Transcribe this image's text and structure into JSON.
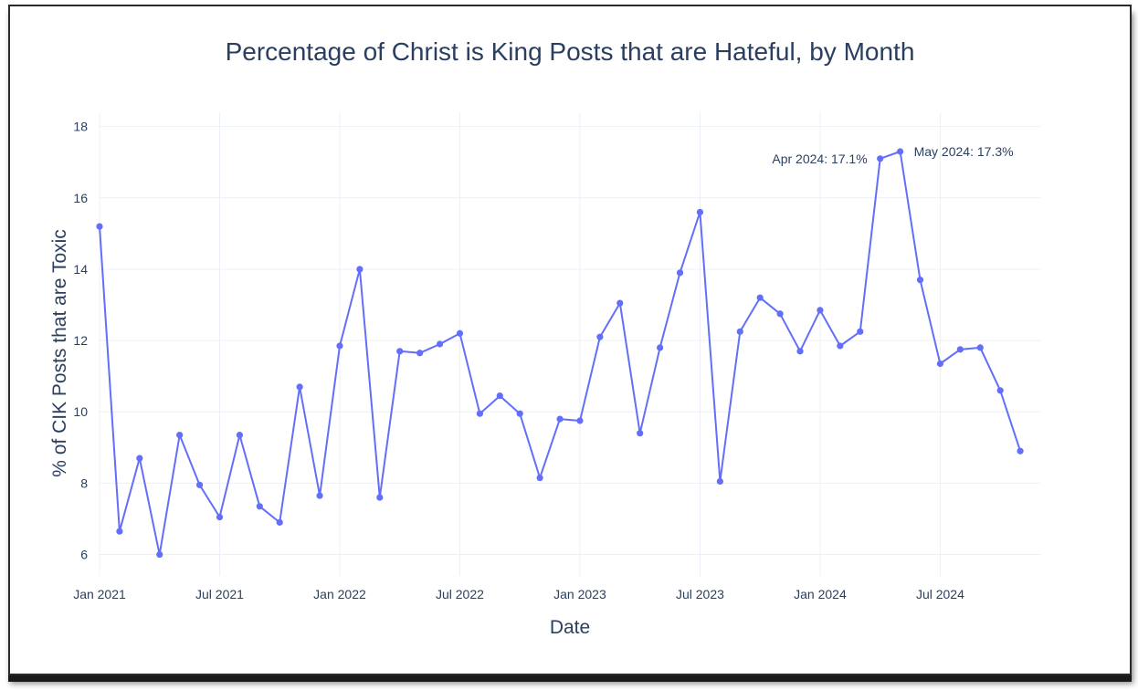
{
  "chart_data": {
    "type": "line",
    "title": "Percentage of Christ is King Posts that are Hateful, by Month",
    "xlabel": "Date",
    "ylabel": "% of CIK Posts that are Toxic",
    "x_range": [
      "2021-01",
      "2024-12"
    ],
    "ylim": [
      5.4,
      18.4
    ],
    "y_ticks": [
      6,
      8,
      10,
      12,
      14,
      16,
      18
    ],
    "x_ticks": [
      {
        "month": "2021-01",
        "label": "Jan 2021"
      },
      {
        "month": "2021-07",
        "label": "Jul 2021"
      },
      {
        "month": "2022-01",
        "label": "Jan 2022"
      },
      {
        "month": "2022-07",
        "label": "Jul 2022"
      },
      {
        "month": "2023-01",
        "label": "Jan 2023"
      },
      {
        "month": "2023-07",
        "label": "Jul 2023"
      },
      {
        "month": "2024-01",
        "label": "Jan 2024"
      },
      {
        "month": "2024-07",
        "label": "Jul 2024"
      }
    ],
    "color": "#636efa",
    "series": [
      {
        "name": "toxic_pct",
        "x": [
          "2021-01",
          "2021-02",
          "2021-03",
          "2021-04",
          "2021-05",
          "2021-06",
          "2021-07",
          "2021-08",
          "2021-09",
          "2021-10",
          "2021-11",
          "2021-12",
          "2022-01",
          "2022-02",
          "2022-03",
          "2022-04",
          "2022-05",
          "2022-06",
          "2022-07",
          "2022-08",
          "2022-09",
          "2022-10",
          "2022-11",
          "2022-12",
          "2023-01",
          "2023-02",
          "2023-03",
          "2023-04",
          "2023-05",
          "2023-06",
          "2023-07",
          "2023-08",
          "2023-09",
          "2023-10",
          "2023-11",
          "2023-12",
          "2024-01",
          "2024-02",
          "2024-03",
          "2024-04",
          "2024-05",
          "2024-06",
          "2024-07",
          "2024-08",
          "2024-09",
          "2024-10",
          "2024-11"
        ],
        "values": [
          15.2,
          6.65,
          8.7,
          6.0,
          9.35,
          7.95,
          7.05,
          9.35,
          7.35,
          6.9,
          10.7,
          7.65,
          11.85,
          14.0,
          7.6,
          11.7,
          11.65,
          11.9,
          12.2,
          9.95,
          10.45,
          9.95,
          8.15,
          9.8,
          9.75,
          12.1,
          13.05,
          9.4,
          11.8,
          13.9,
          15.6,
          8.05,
          12.25,
          13.2,
          12.75,
          11.7,
          12.85,
          11.85,
          12.25,
          17.1,
          17.3,
          13.7,
          11.35,
          11.75,
          11.8,
          10.6,
          8.9
        ]
      }
    ],
    "annotations": [
      {
        "month": "2024-04",
        "value": 17.1,
        "text": "Apr 2024: 17.1%",
        "position": "left"
      },
      {
        "month": "2024-05",
        "value": 17.3,
        "text": "May 2024: 17.3%",
        "position": "right"
      }
    ]
  }
}
